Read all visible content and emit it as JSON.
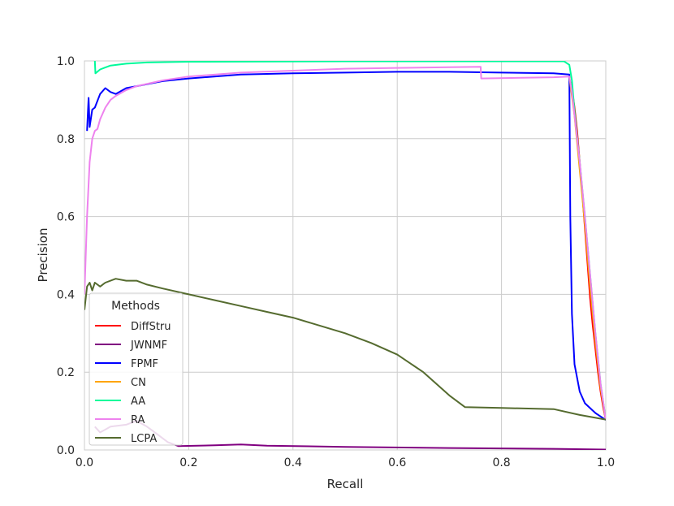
{
  "chart_data": {
    "type": "line",
    "title": "",
    "xlabel": "Recall",
    "ylabel": "Precision",
    "xlim": [
      0,
      1
    ],
    "ylim": [
      0,
      1
    ],
    "xticks": [
      "0.0",
      "0.2",
      "0.4",
      "0.6",
      "0.8",
      "1.0"
    ],
    "yticks": [
      "0.0",
      "0.2",
      "0.4",
      "0.6",
      "0.8",
      "1.0"
    ],
    "grid": true,
    "legend": {
      "title": "Methods",
      "placement": "lower-left"
    },
    "series": [
      {
        "name": "DiffStru",
        "color": "#ff0000",
        "points": [
          [
            0.93,
            0.955
          ],
          [
            0.935,
            0.93
          ],
          [
            0.94,
            0.88
          ],
          [
            0.945,
            0.82
          ],
          [
            0.95,
            0.74
          ],
          [
            0.955,
            0.66
          ],
          [
            0.96,
            0.57
          ],
          [
            0.965,
            0.48
          ],
          [
            0.97,
            0.39
          ],
          [
            0.975,
            0.32
          ],
          [
            0.98,
            0.26
          ],
          [
            0.985,
            0.2
          ],
          [
            0.99,
            0.15
          ],
          [
            0.995,
            0.11
          ],
          [
            1.0,
            0.077
          ]
        ]
      },
      {
        "name": "JWNMF",
        "color": "#800080",
        "points": [
          [
            0.02,
            0.06
          ],
          [
            0.03,
            0.045
          ],
          [
            0.05,
            0.06
          ],
          [
            0.08,
            0.065
          ],
          [
            0.1,
            0.075
          ],
          [
            0.12,
            0.06
          ],
          [
            0.14,
            0.04
          ],
          [
            0.16,
            0.02
          ],
          [
            0.18,
            0.01
          ],
          [
            0.25,
            0.012
          ],
          [
            0.3,
            0.014
          ],
          [
            0.35,
            0.011
          ],
          [
            0.5,
            0.008
          ],
          [
            0.7,
            0.005
          ],
          [
            0.9,
            0.003
          ],
          [
            1.0,
            0.001
          ]
        ]
      },
      {
        "name": "FPMF",
        "color": "#0000ff",
        "points": [
          [
            0.005,
            0.82
          ],
          [
            0.008,
            0.905
          ],
          [
            0.01,
            0.83
          ],
          [
            0.015,
            0.875
          ],
          [
            0.02,
            0.88
          ],
          [
            0.03,
            0.915
          ],
          [
            0.04,
            0.93
          ],
          [
            0.05,
            0.92
          ],
          [
            0.06,
            0.915
          ],
          [
            0.08,
            0.93
          ],
          [
            0.1,
            0.935
          ],
          [
            0.12,
            0.94
          ],
          [
            0.15,
            0.948
          ],
          [
            0.2,
            0.955
          ],
          [
            0.3,
            0.965
          ],
          [
            0.4,
            0.968
          ],
          [
            0.5,
            0.97
          ],
          [
            0.6,
            0.972
          ],
          [
            0.7,
            0.972
          ],
          [
            0.8,
            0.97
          ],
          [
            0.9,
            0.968
          ],
          [
            0.93,
            0.965
          ],
          [
            0.932,
            0.6
          ],
          [
            0.935,
            0.35
          ],
          [
            0.94,
            0.22
          ],
          [
            0.95,
            0.15
          ],
          [
            0.96,
            0.12
          ],
          [
            0.98,
            0.095
          ],
          [
            1.0,
            0.077
          ]
        ]
      },
      {
        "name": "CN",
        "color": "#ffa500",
        "points": [
          [
            0.93,
            0.96
          ],
          [
            0.935,
            0.91
          ],
          [
            0.94,
            0.86
          ],
          [
            0.945,
            0.79
          ],
          [
            0.95,
            0.72
          ],
          [
            0.96,
            0.58
          ],
          [
            0.97,
            0.42
          ],
          [
            0.98,
            0.28
          ],
          [
            0.99,
            0.16
          ],
          [
            1.0,
            0.077
          ]
        ]
      },
      {
        "name": "AA",
        "color": "#00fa9a",
        "points": [
          [
            0.02,
            1.0
          ],
          [
            0.021,
            0.968
          ],
          [
            0.03,
            0.978
          ],
          [
            0.05,
            0.988
          ],
          [
            0.08,
            0.993
          ],
          [
            0.12,
            0.996
          ],
          [
            0.2,
            0.998
          ],
          [
            0.5,
            0.999
          ],
          [
            0.92,
            0.999
          ],
          [
            0.93,
            0.99
          ],
          [
            0.935,
            0.95
          ],
          [
            0.94,
            0.87
          ],
          [
            0.95,
            0.74
          ],
          [
            0.96,
            0.6
          ],
          [
            0.97,
            0.45
          ],
          [
            0.98,
            0.3
          ],
          [
            0.99,
            0.17
          ],
          [
            1.0,
            0.077
          ]
        ]
      },
      {
        "name": "RA",
        "color": "#ee82ee",
        "points": [
          [
            0.0,
            0.4
          ],
          [
            0.005,
            0.6
          ],
          [
            0.01,
            0.74
          ],
          [
            0.015,
            0.8
          ],
          [
            0.02,
            0.82
          ],
          [
            0.025,
            0.825
          ],
          [
            0.03,
            0.85
          ],
          [
            0.04,
            0.88
          ],
          [
            0.05,
            0.9
          ],
          [
            0.06,
            0.91
          ],
          [
            0.08,
            0.925
          ],
          [
            0.1,
            0.935
          ],
          [
            0.15,
            0.95
          ],
          [
            0.2,
            0.96
          ],
          [
            0.3,
            0.97
          ],
          [
            0.4,
            0.975
          ],
          [
            0.5,
            0.98
          ],
          [
            0.6,
            0.982
          ],
          [
            0.7,
            0.984
          ],
          [
            0.76,
            0.985
          ],
          [
            0.761,
            0.955
          ],
          [
            0.9,
            0.958
          ],
          [
            0.93,
            0.96
          ],
          [
            0.935,
            0.92
          ],
          [
            0.94,
            0.86
          ],
          [
            0.95,
            0.74
          ],
          [
            0.96,
            0.6
          ],
          [
            0.97,
            0.45
          ],
          [
            0.98,
            0.3
          ],
          [
            0.99,
            0.17
          ],
          [
            1.0,
            0.077
          ]
        ]
      },
      {
        "name": "LCPA",
        "color": "#556b2f",
        "points": [
          [
            0.0,
            0.36
          ],
          [
            0.005,
            0.42
          ],
          [
            0.01,
            0.43
          ],
          [
            0.015,
            0.41
          ],
          [
            0.02,
            0.43
          ],
          [
            0.03,
            0.42
          ],
          [
            0.04,
            0.43
          ],
          [
            0.06,
            0.44
          ],
          [
            0.08,
            0.435
          ],
          [
            0.1,
            0.435
          ],
          [
            0.12,
            0.425
          ],
          [
            0.15,
            0.415
          ],
          [
            0.2,
            0.4
          ],
          [
            0.25,
            0.385
          ],
          [
            0.3,
            0.37
          ],
          [
            0.35,
            0.355
          ],
          [
            0.4,
            0.34
          ],
          [
            0.45,
            0.32
          ],
          [
            0.5,
            0.3
          ],
          [
            0.55,
            0.275
          ],
          [
            0.6,
            0.245
          ],
          [
            0.65,
            0.2
          ],
          [
            0.7,
            0.14
          ],
          [
            0.73,
            0.11
          ],
          [
            0.8,
            0.108
          ],
          [
            0.9,
            0.105
          ],
          [
            0.95,
            0.09
          ],
          [
            1.0,
            0.078
          ]
        ]
      }
    ]
  }
}
